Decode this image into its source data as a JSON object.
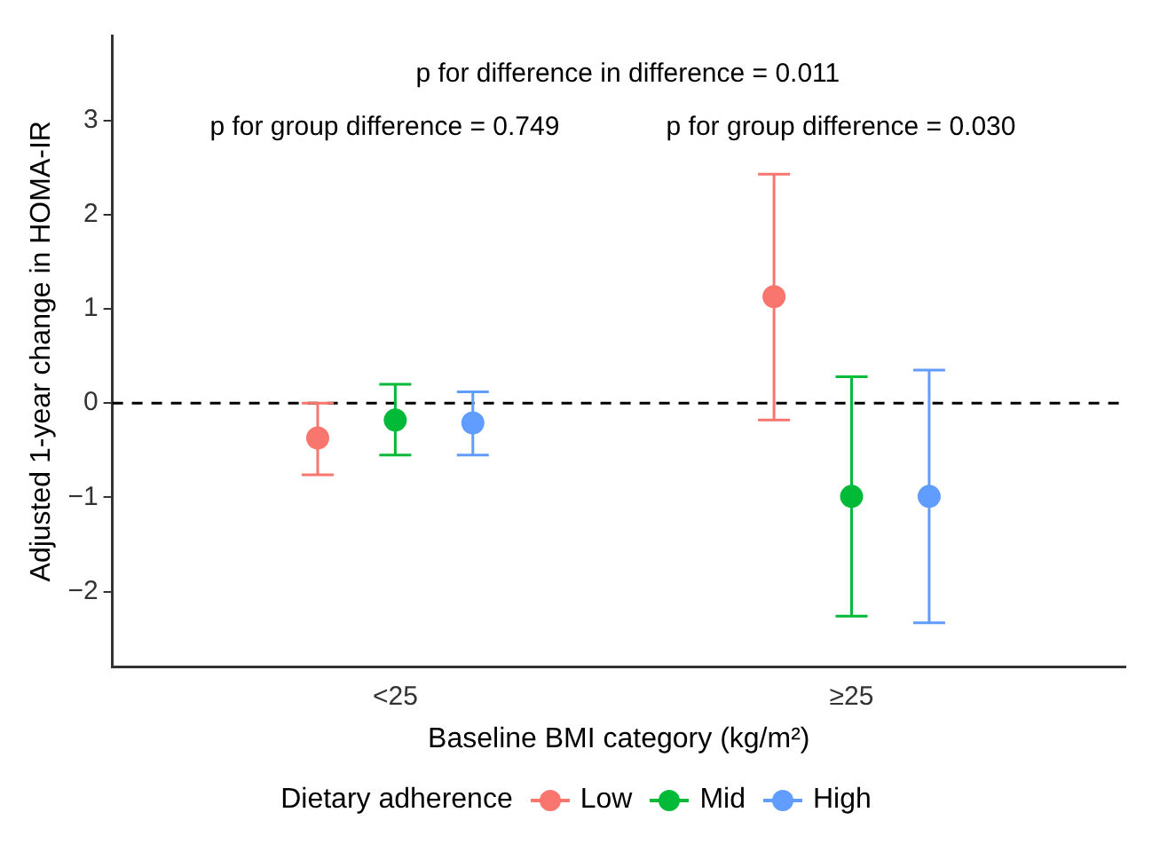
{
  "chart_data": {
    "type": "scatter",
    "xlabel": "Baseline BMI category (kg/m²)",
    "ylabel": "Adjusted 1-year change in HOMA-IR",
    "legend_title": "Dietary adherence",
    "categories": [
      "<25",
      "≥25"
    ],
    "series": [
      {
        "name": "Low",
        "color": "#f8766d",
        "values": [
          -0.37,
          1.13
        ],
        "errors": [
          [
            -0.76,
            0.0
          ],
          [
            -0.18,
            2.43
          ]
        ]
      },
      {
        "name": "Mid",
        "color": "#00ba38",
        "values": [
          -0.18,
          -0.99
        ],
        "errors": [
          [
            -0.55,
            0.2
          ],
          [
            -2.26,
            0.28
          ]
        ]
      },
      {
        "name": "High",
        "color": "#619cff",
        "values": [
          -0.21,
          -0.99
        ],
        "errors": [
          [
            -0.55,
            0.12
          ],
          [
            -2.33,
            0.35
          ]
        ]
      }
    ],
    "ylim": [
      -2.8,
      3.9
    ],
    "yticks": [
      -2,
      -1,
      0,
      1,
      2,
      3
    ],
    "ref_lines": [
      {
        "axis": "y",
        "value": 0,
        "line_style": "dashed",
        "color": "#000000"
      }
    ],
    "annotations": [
      "p for difference in difference = 0.011",
      "p for group difference = 0.749",
      "p for group difference = 0.030"
    ],
    "marker": "circle",
    "grid": false,
    "legend": "bottom"
  }
}
